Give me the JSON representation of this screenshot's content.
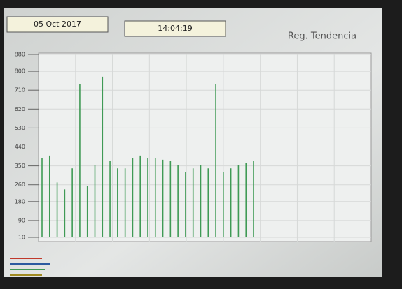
{
  "header": {
    "date": "05 Oct 2017",
    "time": "14:04:19",
    "title": "Reg. Tendencia"
  },
  "chart_data": {
    "type": "spike",
    "categories": [
      null,
      null,
      null,
      null,
      null,
      null,
      null,
      null,
      null,
      null,
      null,
      null,
      null,
      null,
      null,
      null,
      null,
      null,
      null,
      null,
      null,
      null,
      null,
      null,
      null,
      null,
      null,
      null,
      null
    ],
    "series": [
      {
        "color": "#3f9a55",
        "values": [
          388,
          399,
          271,
          238,
          338,
          740,
          255,
          355,
          774,
          372,
          338,
          338,
          388,
          399,
          388,
          388,
          379,
          372,
          355,
          322,
          338,
          355,
          338,
          740,
          322,
          338,
          355,
          365,
          372
        ]
      }
    ],
    "ylim": [
      10,
      880
    ],
    "yticks": [
      10,
      90,
      180,
      260,
      350,
      440,
      530,
      620,
      710,
      800,
      880
    ],
    "grid": true
  }
}
